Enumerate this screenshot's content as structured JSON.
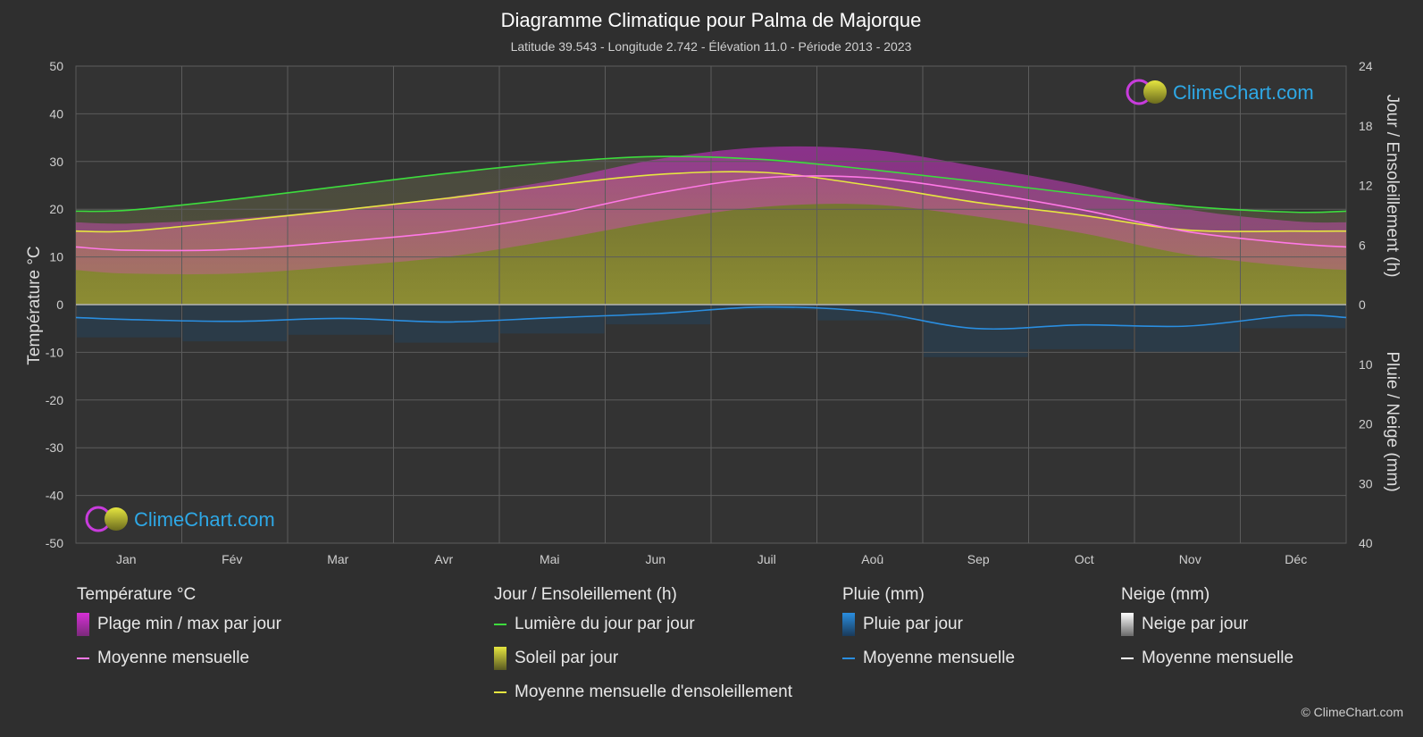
{
  "header": {
    "title": "Diagramme Climatique pour Palma de Majorque",
    "subtitle": "Latitude 39.543 - Longitude 2.742 - Élévation 11.0 - Période 2013 - 2023"
  },
  "logo_text": "ClimeChart.com",
  "copyright": "© ClimeChart.com",
  "colors": {
    "background": "#2f2f2f",
    "grid": "#5a5a5a",
    "daylight": "#3ddc3d",
    "sunshine_fill": "#8c8c32",
    "sunshine_line": "#e6e640",
    "temp_range": "#c83cb4",
    "temp_mean": "#ff78e6",
    "rain_bar": "#1e5a8c",
    "rain_mean": "#2a8ee0",
    "snow_mean": "#ffffff",
    "logo": "#2ea8e6"
  },
  "chart_data": {
    "type": "area",
    "categories": [
      "Jan",
      "Fév",
      "Mar",
      "Avr",
      "Mai",
      "Jun",
      "Juil",
      "Aoû",
      "Sep",
      "Oct",
      "Nov",
      "Déc"
    ],
    "y_left": {
      "label": "Température °C",
      "range": [
        -50,
        50
      ],
      "ticks": [
        "50",
        "40",
        "30",
        "20",
        "10",
        "0",
        "-10",
        "-20",
        "-30",
        "-40",
        "-50"
      ]
    },
    "y_right_top": {
      "label": "Jour / Ensoleillement (h)",
      "range": [
        0,
        24
      ],
      "ticks": [
        "24",
        "18",
        "12",
        "6",
        "0"
      ]
    },
    "y_right_bottom": {
      "label": "Pluie / Neige (mm)",
      "range": [
        0,
        40
      ],
      "ticks": [
        "0",
        "10",
        "20",
        "30",
        "40"
      ]
    },
    "series": [
      {
        "name": "Lumière du jour par jour",
        "axis": "sun_h",
        "values": [
          9.5,
          10.6,
          11.9,
          13.2,
          14.3,
          14.9,
          14.6,
          13.6,
          12.4,
          11.1,
          9.9,
          9.3
        ]
      },
      {
        "name": "Moyenne mensuelle d'ensoleillement",
        "axis": "sun_h",
        "values": [
          7.4,
          8.4,
          9.5,
          10.7,
          12.0,
          13.1,
          13.3,
          12.0,
          10.3,
          9.0,
          7.5,
          7.4
        ]
      },
      {
        "name": "Moyenne mensuelle",
        "axis": "temp_c",
        "values": [
          11.4,
          11.6,
          13.2,
          15.3,
          18.8,
          23.4,
          26.6,
          26.6,
          23.7,
          19.9,
          15.3,
          12.8
        ]
      },
      {
        "name": "Plage min / max par jour (max)",
        "axis": "temp_c",
        "values": [
          17.0,
          18.0,
          20.0,
          22.5,
          26.0,
          30.5,
          33.0,
          32.5,
          29.0,
          25.0,
          20.0,
          17.5
        ]
      },
      {
        "name": "Plage min / max par jour (min)",
        "axis": "temp_c",
        "values": [
          6.5,
          6.5,
          8.0,
          10.0,
          13.5,
          17.5,
          20.5,
          21.0,
          18.5,
          15.0,
          10.5,
          8.0
        ]
      },
      {
        "name": "Pluie moyenne mensuelle",
        "axis": "rain_mm",
        "values": [
          2.5,
          2.8,
          2.3,
          2.9,
          2.2,
          1.5,
          0.4,
          1.2,
          4.0,
          3.4,
          3.6,
          1.8
        ]
      },
      {
        "name": "Neige moyenne mensuelle",
        "axis": "rain_mm",
        "values": [
          0,
          0,
          0,
          0,
          0,
          0,
          0,
          0,
          0,
          0,
          0,
          0
        ]
      }
    ]
  },
  "legend": {
    "groups": [
      {
        "title": "Température °C",
        "items": [
          {
            "label": "Plage min / max par jour",
            "kind": "box",
            "color": "#d62fd6"
          },
          {
            "label": "Moyenne mensuelle",
            "kind": "line",
            "color": "#ff78e6"
          }
        ]
      },
      {
        "title": "Jour / Ensoleillement (h)",
        "items": [
          {
            "label": "Lumière du jour par jour",
            "kind": "line",
            "color": "#3ddc3d"
          },
          {
            "label": "Soleil par jour",
            "kind": "box",
            "color": "#c8c83c"
          },
          {
            "label": "Moyenne mensuelle d'ensoleillement",
            "kind": "line",
            "color": "#e6e640"
          }
        ]
      },
      {
        "title": "Pluie (mm)",
        "items": [
          {
            "label": "Pluie par jour",
            "kind": "box",
            "color": "#2a8ee0"
          },
          {
            "label": "Moyenne mensuelle",
            "kind": "line",
            "color": "#2a8ee0"
          }
        ]
      },
      {
        "title": "Neige (mm)",
        "items": [
          {
            "label": "Neige par jour",
            "kind": "box",
            "color": "#d0d0d0"
          },
          {
            "label": "Moyenne mensuelle",
            "kind": "line",
            "color": "#ffffff"
          }
        ]
      }
    ]
  }
}
